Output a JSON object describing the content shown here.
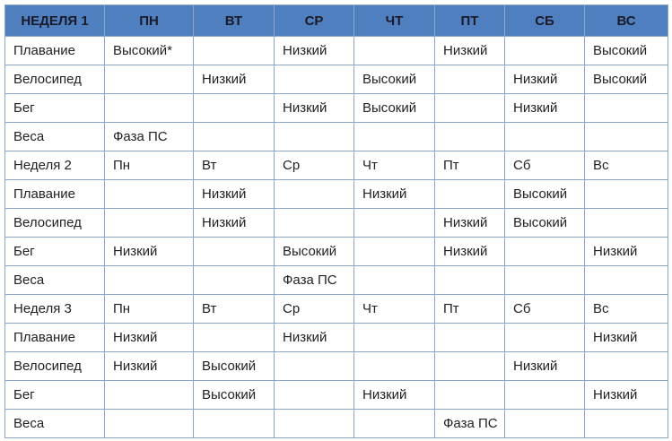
{
  "table": {
    "header": [
      "НЕДЕЛЯ 1",
      "ПН",
      "ВТ",
      "СР",
      "ЧТ",
      "ПТ",
      "СБ",
      "ВС"
    ],
    "rows": [
      [
        "Плавание",
        "Высокий*",
        null,
        "Низкий",
        null,
        "Низкий",
        null,
        "Высокий"
      ],
      [
        "Велосипед",
        null,
        "Низкий",
        null,
        "Высокий",
        null,
        "Низкий",
        "Высокий"
      ],
      [
        "Бег",
        null,
        null,
        "Низкий",
        "Высокий",
        null,
        "Низкий",
        null
      ],
      [
        "Веса",
        "Фаза ПС",
        null,
        null,
        null,
        null,
        null,
        null
      ],
      [
        "Неделя 2",
        "Пн",
        "Вт",
        "Ср",
        "Чт",
        "Пт",
        "Сб",
        "Вс"
      ],
      [
        "Плавание",
        null,
        "Низкий",
        null,
        "Низкий",
        null,
        "Высокий",
        null
      ],
      [
        "Велосипед",
        null,
        "Низкий",
        null,
        null,
        "Низкий",
        "Высокий",
        null
      ],
      [
        "Бег",
        "Низкий",
        null,
        "Высокий",
        null,
        "Низкий",
        null,
        "Низкий"
      ],
      [
        "Веса",
        null,
        null,
        "Фаза ПС",
        null,
        null,
        null,
        null
      ],
      [
        "Неделя 3",
        "Пн",
        "Вт",
        "Ср",
        "Чт",
        "Пт",
        "Сб",
        "Вс"
      ],
      [
        "Плавание",
        "Низкий",
        null,
        "Низкий",
        null,
        null,
        null,
        "Низкий"
      ],
      [
        "Велосипед",
        "Низкий",
        "Высокий",
        null,
        null,
        null,
        "Низкий",
        null
      ],
      [
        "Бег",
        null,
        "Высокий",
        null,
        "Низкий",
        null,
        null,
        "Низкий"
      ],
      [
        "Веса",
        null,
        null,
        null,
        null,
        "Фаза ПС",
        null,
        null
      ]
    ]
  }
}
